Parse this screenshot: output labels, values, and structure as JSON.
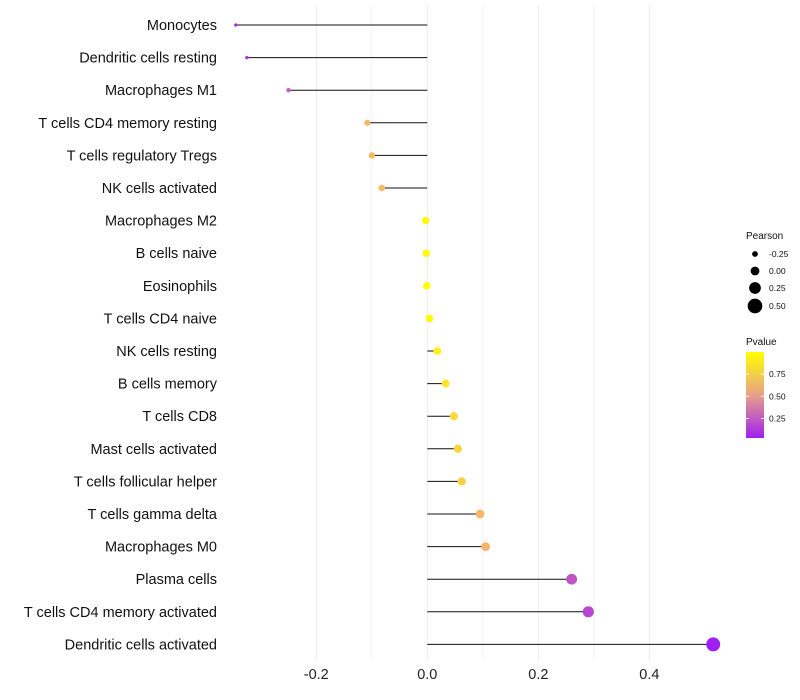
{
  "chart_data": {
    "type": "lollipop",
    "title": "",
    "xlabel": "",
    "ylabel": "",
    "xlim": [
      -0.35,
      0.52
    ],
    "xticks": [
      -0.2,
      0.0,
      0.2,
      0.4
    ],
    "xtick_labels": [
      "-0.2",
      "0.0",
      "0.2",
      "0.4"
    ],
    "grid": true,
    "categories": [
      "Monocytes",
      "Dendritic cells resting",
      "Macrophages M1",
      "T cells CD4 memory resting",
      "T cells regulatory  Tregs ",
      "NK cells activated",
      "Macrophages M2",
      "B cells naive",
      "Eosinophils",
      "T cells CD4 naive",
      "NK cells resting",
      "B cells memory",
      "T cells CD8",
      "Mast cells activated",
      "T cells follicular helper",
      "T cells gamma delta",
      "Macrophages M0",
      "Plasma cells",
      "T cells CD4 memory activated",
      "Dendritic cells activated"
    ],
    "values": [
      -0.345,
      -0.325,
      -0.25,
      -0.108,
      -0.1,
      -0.082,
      -0.003,
      -0.002,
      -0.001,
      0.004,
      0.018,
      0.033,
      0.048,
      0.055,
      0.062,
      0.095,
      0.105,
      0.26,
      0.29,
      0.515
    ],
    "pvalues": [
      0.05,
      0.12,
      0.25,
      0.62,
      0.63,
      0.64,
      0.99,
      0.99,
      0.99,
      0.98,
      0.93,
      0.86,
      0.8,
      0.77,
      0.74,
      0.62,
      0.6,
      0.22,
      0.17,
      0.03
    ],
    "size_legend": {
      "title": "Pearson",
      "values": [
        -0.25,
        0.0,
        0.25,
        0.5
      ],
      "labels": [
        "-0.25",
        "0.00",
        "0.25",
        "0.50"
      ]
    },
    "color_legend": {
      "title": "Pvalue",
      "range": [
        0.03,
        1.0
      ],
      "ticks": [
        0.25,
        0.5,
        0.75
      ],
      "tick_labels": [
        "0.25",
        "0.50",
        "0.75"
      ],
      "low_color": "#a020f0",
      "mid_color": "#f4a582",
      "high_color": "#ffff00"
    }
  }
}
